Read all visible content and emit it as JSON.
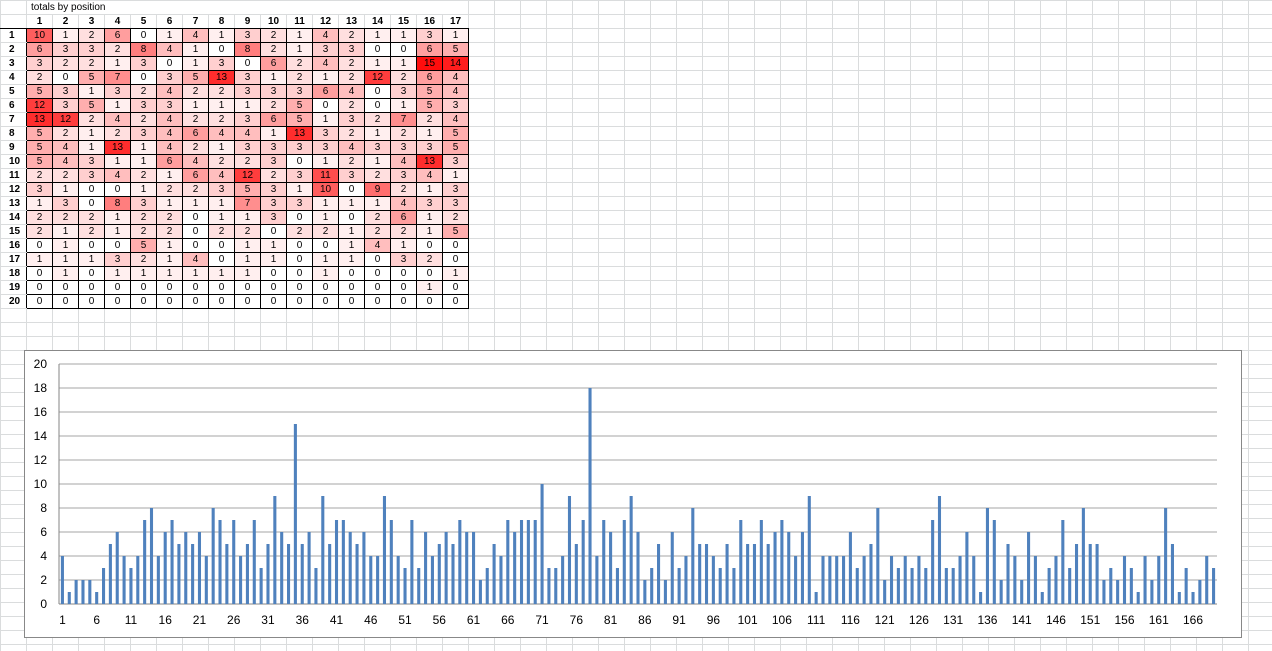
{
  "sheet": {
    "title": "totals by position",
    "column_headers": [
      "1",
      "2",
      "3",
      "4",
      "5",
      "6",
      "7",
      "8",
      "9",
      "10",
      "11",
      "12",
      "13",
      "14",
      "15",
      "16",
      "17"
    ],
    "row_headers": [
      "1",
      "2",
      "3",
      "4",
      "5",
      "6",
      "7",
      "8",
      "9",
      "10",
      "11",
      "12",
      "13",
      "14",
      "15",
      "16",
      "17",
      "18",
      "19",
      "20"
    ],
    "cells": [
      [
        10,
        1,
        2,
        6,
        0,
        1,
        4,
        1,
        3,
        2,
        1,
        4,
        2,
        1,
        1,
        3,
        1
      ],
      [
        6,
        3,
        3,
        2,
        8,
        4,
        1,
        0,
        8,
        2,
        1,
        3,
        3,
        0,
        0,
        6,
        5
      ],
      [
        3,
        2,
        2,
        1,
        3,
        0,
        1,
        3,
        0,
        6,
        2,
        4,
        2,
        1,
        1,
        15,
        14
      ],
      [
        2,
        0,
        5,
        7,
        0,
        3,
        5,
        13,
        3,
        1,
        2,
        1,
        2,
        12,
        2,
        6,
        4
      ],
      [
        5,
        3,
        1,
        3,
        2,
        4,
        2,
        2,
        3,
        3,
        3,
        6,
        4,
        0,
        3,
        5,
        4
      ],
      [
        12,
        3,
        5,
        1,
        3,
        3,
        1,
        1,
        1,
        2,
        5,
        0,
        2,
        0,
        1,
        5,
        3
      ],
      [
        13,
        12,
        2,
        4,
        2,
        4,
        2,
        2,
        3,
        6,
        5,
        1,
        3,
        2,
        7,
        2,
        4
      ],
      [
        5,
        2,
        1,
        2,
        3,
        4,
        6,
        4,
        4,
        1,
        13,
        3,
        2,
        1,
        2,
        1,
        5
      ],
      [
        5,
        4,
        1,
        13,
        1,
        4,
        2,
        1,
        3,
        3,
        3,
        3,
        4,
        3,
        3,
        3,
        5
      ],
      [
        5,
        4,
        3,
        1,
        1,
        6,
        4,
        2,
        2,
        3,
        0,
        1,
        2,
        1,
        4,
        13,
        3
      ],
      [
        2,
        2,
        3,
        4,
        2,
        1,
        6,
        4,
        12,
        2,
        3,
        11,
        3,
        2,
        3,
        4,
        1
      ],
      [
        3,
        1,
        0,
        0,
        1,
        2,
        2,
        3,
        5,
        3,
        1,
        10,
        0,
        9,
        2,
        1,
        3
      ],
      [
        1,
        3,
        0,
        8,
        3,
        1,
        1,
        1,
        7,
        3,
        3,
        1,
        1,
        1,
        4,
        3,
        3
      ],
      [
        2,
        2,
        2,
        1,
        2,
        2,
        0,
        1,
        1,
        3,
        0,
        1,
        0,
        2,
        6,
        1,
        2
      ],
      [
        2,
        1,
        2,
        1,
        2,
        2,
        0,
        2,
        2,
        0,
        2,
        2,
        1,
        2,
        2,
        1,
        5
      ],
      [
        0,
        1,
        0,
        0,
        5,
        1,
        0,
        0,
        1,
        1,
        0,
        0,
        1,
        4,
        1,
        0,
        0
      ],
      [
        1,
        1,
        1,
        3,
        2,
        1,
        4,
        0,
        1,
        1,
        0,
        1,
        1,
        0,
        3,
        2,
        0
      ],
      [
        0,
        1,
        0,
        1,
        1,
        1,
        1,
        1,
        1,
        0,
        0,
        1,
        0,
        0,
        0,
        0,
        1
      ],
      [
        0,
        0,
        0,
        0,
        0,
        0,
        0,
        0,
        0,
        0,
        0,
        0,
        0,
        0,
        0,
        1,
        0
      ],
      [
        0,
        0,
        0,
        0,
        0,
        0,
        0,
        0,
        0,
        0,
        0,
        0,
        0,
        0,
        0,
        0,
        0
      ]
    ],
    "heat_colors": {
      "low": "#ffffff",
      "high": "#ff0000",
      "max_value": 15
    }
  },
  "chart_data": {
    "type": "bar",
    "color": "#4f81bd",
    "ylim": [
      0,
      20
    ],
    "yticks": [
      0,
      2,
      4,
      6,
      8,
      10,
      12,
      14,
      16,
      18,
      20
    ],
    "x_start": 1,
    "x_tick_labels": [
      "1",
      "6",
      "11",
      "16",
      "21",
      "26",
      "31",
      "36",
      "41",
      "46",
      "51",
      "56",
      "61",
      "66",
      "71",
      "76",
      "81",
      "86",
      "91",
      "96",
      "101",
      "106",
      "111",
      "116",
      "121",
      "126",
      "131",
      "136",
      "141",
      "146",
      "151",
      "156",
      "161",
      "166"
    ],
    "grid": true,
    "values": [
      4,
      1,
      2,
      2,
      2,
      1,
      3,
      5,
      6,
      4,
      3,
      4,
      7,
      8,
      4,
      6,
      7,
      5,
      6,
      5,
      6,
      4,
      8,
      7,
      5,
      7,
      4,
      5,
      7,
      3,
      5,
      9,
      6,
      5,
      15,
      5,
      6,
      3,
      9,
      5,
      7,
      7,
      6,
      5,
      6,
      4,
      4,
      9,
      7,
      4,
      3,
      7,
      3,
      6,
      4,
      5,
      6,
      5,
      7,
      6,
      6,
      2,
      3,
      5,
      4,
      7,
      6,
      7,
      7,
      7,
      10,
      3,
      3,
      4,
      9,
      5,
      7,
      18,
      4,
      7,
      6,
      3,
      7,
      9,
      6,
      2,
      3,
      5,
      2,
      6,
      3,
      4,
      8,
      5,
      5,
      4,
      3,
      5,
      3,
      7,
      5,
      5,
      7,
      5,
      6,
      7,
      6,
      4,
      6,
      9,
      1,
      4,
      4,
      4,
      4,
      6,
      3,
      4,
      5,
      8,
      2,
      4,
      3,
      4,
      3,
      4,
      3,
      7,
      9,
      3,
      3,
      4,
      6,
      4,
      1,
      8,
      7,
      2,
      5,
      4,
      2,
      6,
      4,
      1,
      3,
      4,
      7,
      3,
      5,
      8,
      5,
      5,
      2,
      3,
      2,
      4,
      3,
      1,
      4,
      2,
      4,
      8,
      5,
      1,
      3,
      1,
      2,
      4,
      3
    ]
  }
}
